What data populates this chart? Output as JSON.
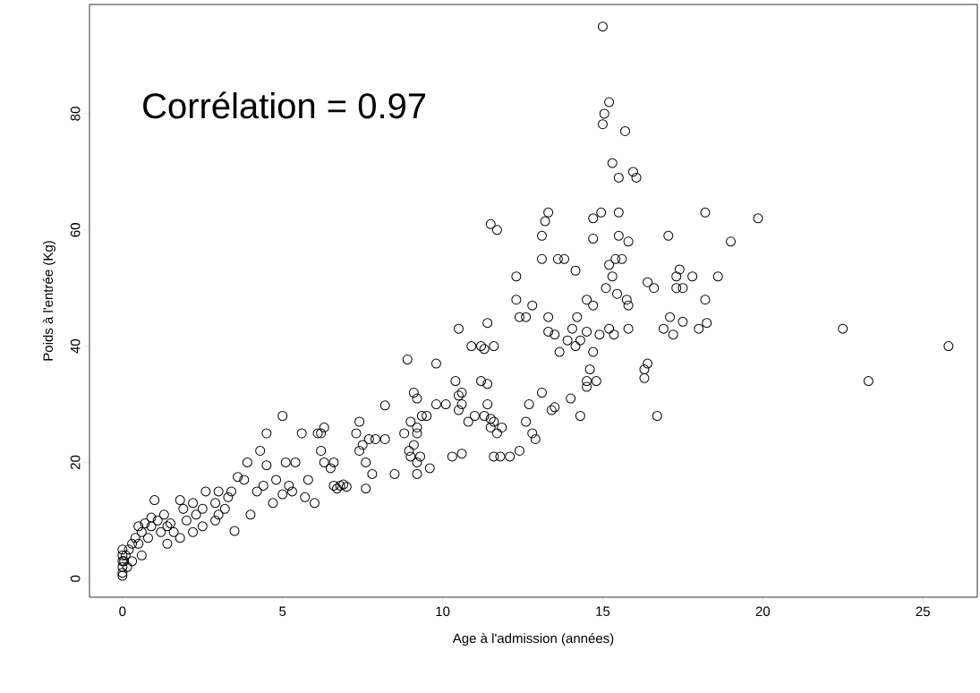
{
  "chart_data": {
    "type": "scatter",
    "xlabel": "Age à l'admission (années)",
    "ylabel": "Poids à l'entrée (Kg)",
    "annotations": [
      "Corrélation = 0.97"
    ],
    "xlim": [
      -1.03,
      26.7
    ],
    "ylim": [
      -3.2,
      98.8
    ],
    "xticks": [
      0,
      5,
      10,
      15,
      20,
      25
    ],
    "yticks": [
      0,
      20,
      40,
      60,
      80
    ],
    "grid": false,
    "marker": "circle",
    "series": [
      {
        "color": "#000000",
        "x": [
          15.0,
          15.2,
          15.05,
          15.0,
          15.7,
          15.3,
          15.95,
          15.5,
          16.05,
          15.5,
          14.95,
          13.3,
          18.2,
          19.85,
          14.7,
          11.5,
          11.7,
          13.2,
          15.5,
          17.05,
          13.1,
          14.7,
          15.8,
          19.0,
          13.6,
          13.1,
          13.8,
          15.4,
          15.2,
          15.6,
          14.15,
          17.4,
          17.3,
          17.8,
          18.6,
          12.3,
          15.3,
          15.45,
          15.1,
          16.4,
          17.3,
          17.5,
          16.6,
          15.75,
          15.8,
          18.2,
          16.9,
          17.2,
          17.1,
          18.0,
          18.25,
          17.5,
          22.5,
          23.3,
          25.8,
          16.7,
          16.3,
          16.4,
          16.3,
          15.8,
          15.2,
          15.35,
          14.9,
          14.5,
          14.7,
          14.2,
          13.3,
          13.3,
          13.5,
          12.4,
          12.3,
          12.6,
          12.8,
          13.65,
          13.9,
          14.05,
          14.3,
          14.5,
          14.15,
          14.7,
          14.0,
          14.6,
          14.5,
          14.5,
          14.8,
          14.3,
          13.5,
          13.4,
          13.1,
          12.8,
          12.9,
          12.7,
          12.6,
          12.4,
          12.1,
          11.4,
          11.2,
          11.3,
          11.6,
          10.5,
          10.9,
          11.2,
          11.4,
          10.4,
          10.6,
          10.5,
          10.6,
          10.5,
          10.8,
          11.0,
          11.4,
          11.5,
          11.6,
          11.7,
          11.5,
          11.6,
          11.8,
          11.85,
          11.3,
          10.3,
          10.6,
          9.8,
          10.1,
          9.8,
          8.9,
          9.1,
          9.2,
          9.2,
          9.2,
          9.0,
          9.1,
          8.95,
          9.0,
          9.3,
          9.2,
          9.2,
          9.35,
          9.6,
          9.5,
          8.8,
          8.2,
          8.2,
          8.5,
          7.9,
          7.7,
          7.6,
          7.4,
          7.5,
          7.4,
          7.6,
          7.8,
          7.3,
          7.0,
          6.8,
          6.6,
          6.7,
          6.9,
          6.3,
          6.2,
          6.1,
          6.2,
          6.3,
          6.5,
          6.6,
          5.6,
          5.4,
          5.0,
          5.1,
          5.2,
          4.5,
          4.3,
          4.5,
          4.4,
          3.9,
          3.8,
          3.5,
          3.6,
          3.4,
          3.0,
          2.9,
          2.9,
          2.6,
          2.5,
          2.2,
          1.8,
          1.6,
          1.8,
          1.4,
          1.0,
          1.3,
          1.1,
          0.9,
          0.7,
          0.5,
          0.4,
          0.3,
          0.6,
          0.2,
          0.1,
          0.05,
          0,
          0,
          0,
          0,
          0,
          0,
          0.5,
          0.8,
          1.2,
          1.5,
          2.0,
          2.2,
          2.5,
          3.2,
          3.3,
          4.0,
          4.2,
          4.7,
          5.3,
          5.7,
          6.0,
          5.8,
          4.8,
          5.0,
          3.0,
          2.3,
          1.9,
          1.4,
          0.9,
          0.6,
          0.3,
          0.15
        ],
        "values": [
          95,
          82,
          80,
          78.2,
          77,
          71.5,
          70,
          69,
          69,
          63,
          63,
          63,
          63,
          62,
          62,
          61,
          60,
          61.5,
          59,
          59,
          59,
          58.5,
          58,
          58,
          55,
          55,
          55,
          55,
          54,
          55,
          53,
          53.2,
          52,
          52,
          52,
          52,
          52,
          49,
          50,
          51,
          50,
          50,
          50,
          48,
          47,
          48,
          43,
          42,
          45,
          43,
          44,
          44.2,
          43,
          34,
          40,
          28,
          36,
          37,
          34.5,
          43,
          43,
          42,
          42,
          48,
          47,
          45,
          45,
          42.5,
          42,
          45,
          48,
          45,
          47,
          39,
          41,
          43,
          41,
          42.5,
          40,
          39,
          31,
          36,
          34,
          33,
          34,
          28,
          29.5,
          29,
          32,
          25,
          24,
          30,
          27,
          22,
          21,
          44,
          40,
          39.5,
          40,
          43,
          40,
          34,
          33.5,
          34,
          32,
          31.5,
          30,
          29,
          27,
          28,
          30,
          27.5,
          27,
          25,
          26,
          21,
          21,
          26,
          28,
          21,
          21.5,
          30,
          30,
          37,
          37.7,
          32,
          31,
          26,
          25,
          27,
          23,
          22,
          21,
          21,
          20,
          18,
          28,
          19,
          28,
          25,
          29.8,
          24,
          18,
          24,
          24,
          20,
          27,
          23,
          22,
          15.5,
          18,
          25,
          15.8,
          16,
          16,
          15.5,
          16.2,
          26,
          25,
          25,
          22,
          20,
          19,
          20,
          25,
          20,
          28,
          20,
          16,
          25,
          22,
          19.5,
          16,
          20,
          17,
          8.2,
          17.5,
          15,
          15,
          10,
          13,
          15,
          12,
          13,
          13.5,
          8,
          7,
          6,
          13.5,
          11,
          10,
          9,
          9.5,
          9,
          7,
          6,
          4,
          5,
          4,
          3,
          1,
          0.5,
          2,
          3,
          4,
          5,
          6,
          7,
          8,
          9.5,
          10,
          8,
          9,
          12,
          14,
          11,
          15,
          13,
          15,
          14,
          13,
          17,
          17,
          14.5,
          11,
          11,
          12,
          9,
          10.5,
          8,
          3,
          2
        ]
      }
    ]
  }
}
